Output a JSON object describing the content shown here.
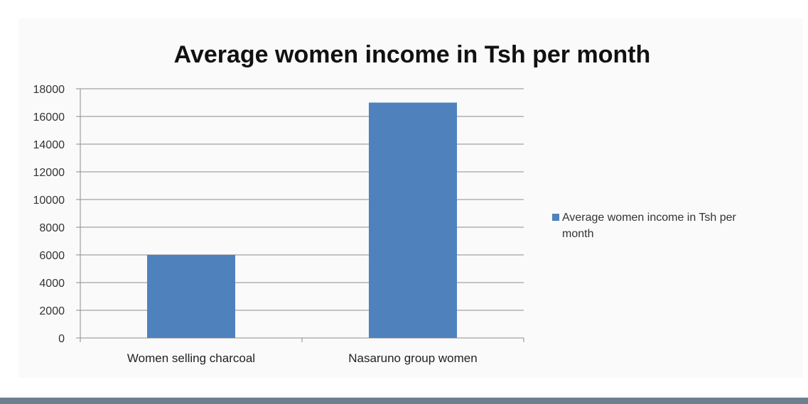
{
  "chart_data": {
    "type": "bar",
    "title": "Average women income in Tsh per month",
    "categories": [
      "Women selling charcoal",
      "Nasaruno group women"
    ],
    "series": [
      {
        "name": "Average women income in Tsh per month",
        "values": [
          6000,
          17000
        ],
        "color": "#4f81bd"
      }
    ],
    "ylim": [
      0,
      18000
    ],
    "yticks": [
      0,
      2000,
      4000,
      6000,
      8000,
      10000,
      12000,
      14000,
      16000,
      18000
    ],
    "xlabel": "",
    "ylabel": "",
    "grid": true,
    "legend": {
      "placement": "right",
      "lines": [
        "Average women income in Tsh per",
        "month"
      ]
    }
  }
}
